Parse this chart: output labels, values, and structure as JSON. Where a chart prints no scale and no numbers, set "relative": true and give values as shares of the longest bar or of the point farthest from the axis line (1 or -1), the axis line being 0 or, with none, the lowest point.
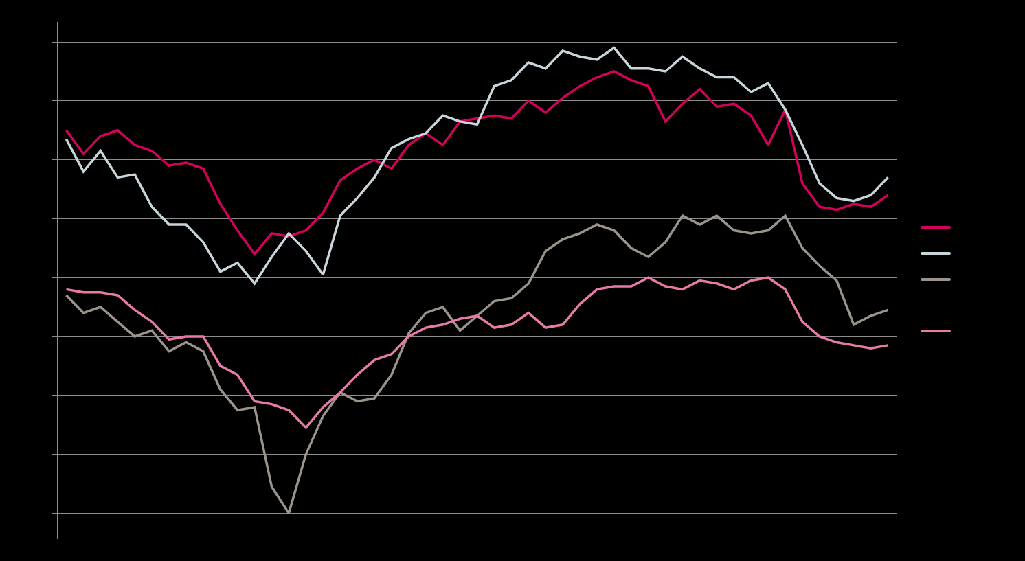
{
  "chart_data": {
    "type": "line",
    "relative": true,
    "grid": "y",
    "marker": "none",
    "line_style": "solid",
    "tick_labels": false,
    "categories": [
      null,
      null,
      null,
      null,
      null,
      null,
      null,
      null,
      null,
      null,
      null,
      null,
      null,
      null,
      null,
      null,
      null,
      null,
      null,
      null,
      null,
      null,
      null,
      null,
      null,
      null,
      null,
      null,
      null,
      null,
      null,
      null,
      null,
      null,
      null,
      null,
      null,
      null,
      null,
      null,
      null,
      null,
      null,
      null,
      null,
      null,
      null,
      null,
      null
    ],
    "series": [
      {
        "color": "#d4005a",
        "values": [
          0.3,
          0.22,
          0.28,
          0.3,
          0.25,
          0.23,
          0.18,
          0.19,
          0.17,
          0.05,
          -0.04,
          -0.12,
          -0.05,
          -0.06,
          -0.04,
          0.02,
          0.13,
          0.17,
          0.2,
          0.17,
          0.25,
          0.29,
          0.25,
          0.33,
          0.34,
          0.35,
          0.34,
          0.4,
          0.36,
          0.41,
          0.45,
          0.48,
          0.5,
          0.47,
          0.45,
          0.33,
          0.39,
          0.44,
          0.38,
          0.39,
          0.35,
          0.25,
          0.37,
          0.12,
          0.04,
          0.03,
          0.05,
          0.04,
          0.08
        ]
      },
      {
        "color": "#c8d6dc",
        "values": [
          0.27,
          0.16,
          0.23,
          0.14,
          0.15,
          0.04,
          -0.02,
          -0.02,
          -0.08,
          -0.18,
          -0.15,
          -0.22,
          -0.13,
          -0.05,
          -0.11,
          -0.19,
          0.01,
          0.07,
          0.14,
          0.24,
          0.27,
          0.29,
          0.35,
          0.33,
          0.32,
          0.45,
          0.47,
          0.53,
          0.51,
          0.57,
          0.55,
          0.54,
          0.58,
          0.51,
          0.51,
          0.5,
          0.55,
          0.51,
          0.48,
          0.48,
          0.43,
          0.46,
          0.37,
          0.25,
          0.12,
          0.07,
          0.06,
          0.08,
          0.14
        ]
      },
      {
        "color": "#9b948c",
        "values": [
          -0.26,
          -0.32,
          -0.3,
          -0.35,
          -0.4,
          -0.38,
          -0.45,
          -0.42,
          -0.45,
          -0.58,
          -0.65,
          -0.64,
          -0.91,
          -1,
          -0.8,
          -0.67,
          -0.59,
          -0.62,
          -0.61,
          -0.53,
          -0.39,
          -0.32,
          -0.3,
          -0.38,
          -0.33,
          -0.28,
          -0.27,
          -0.22,
          -0.11,
          -0.07,
          -0.05,
          -0.02,
          -0.04,
          -0.1,
          -0.13,
          -0.08,
          0.01,
          -0.02,
          0.01,
          -0.04,
          -0.05,
          -0.04,
          0.01,
          -0.1,
          -0.16,
          -0.21,
          -0.36,
          -0.33,
          -0.31
        ]
      },
      {
        "color": "#e87aa8",
        "values": [
          -0.24,
          -0.25,
          -0.25,
          -0.26,
          -0.31,
          -0.35,
          -0.41,
          -0.4,
          -0.4,
          -0.5,
          -0.53,
          -0.62,
          -0.63,
          -0.65,
          -0.71,
          -0.64,
          -0.59,
          -0.53,
          -0.48,
          -0.46,
          -0.4,
          -0.37,
          -0.36,
          -0.34,
          -0.33,
          -0.37,
          -0.36,
          -0.32,
          -0.37,
          -0.36,
          -0.29,
          -0.24,
          -0.23,
          -0.23,
          -0.2,
          -0.23,
          -0.24,
          -0.21,
          -0.22,
          -0.24,
          -0.21,
          -0.2,
          -0.24,
          -0.35,
          -0.4,
          -0.42,
          -0.43,
          -0.44,
          -0.43
        ]
      }
    ]
  }
}
